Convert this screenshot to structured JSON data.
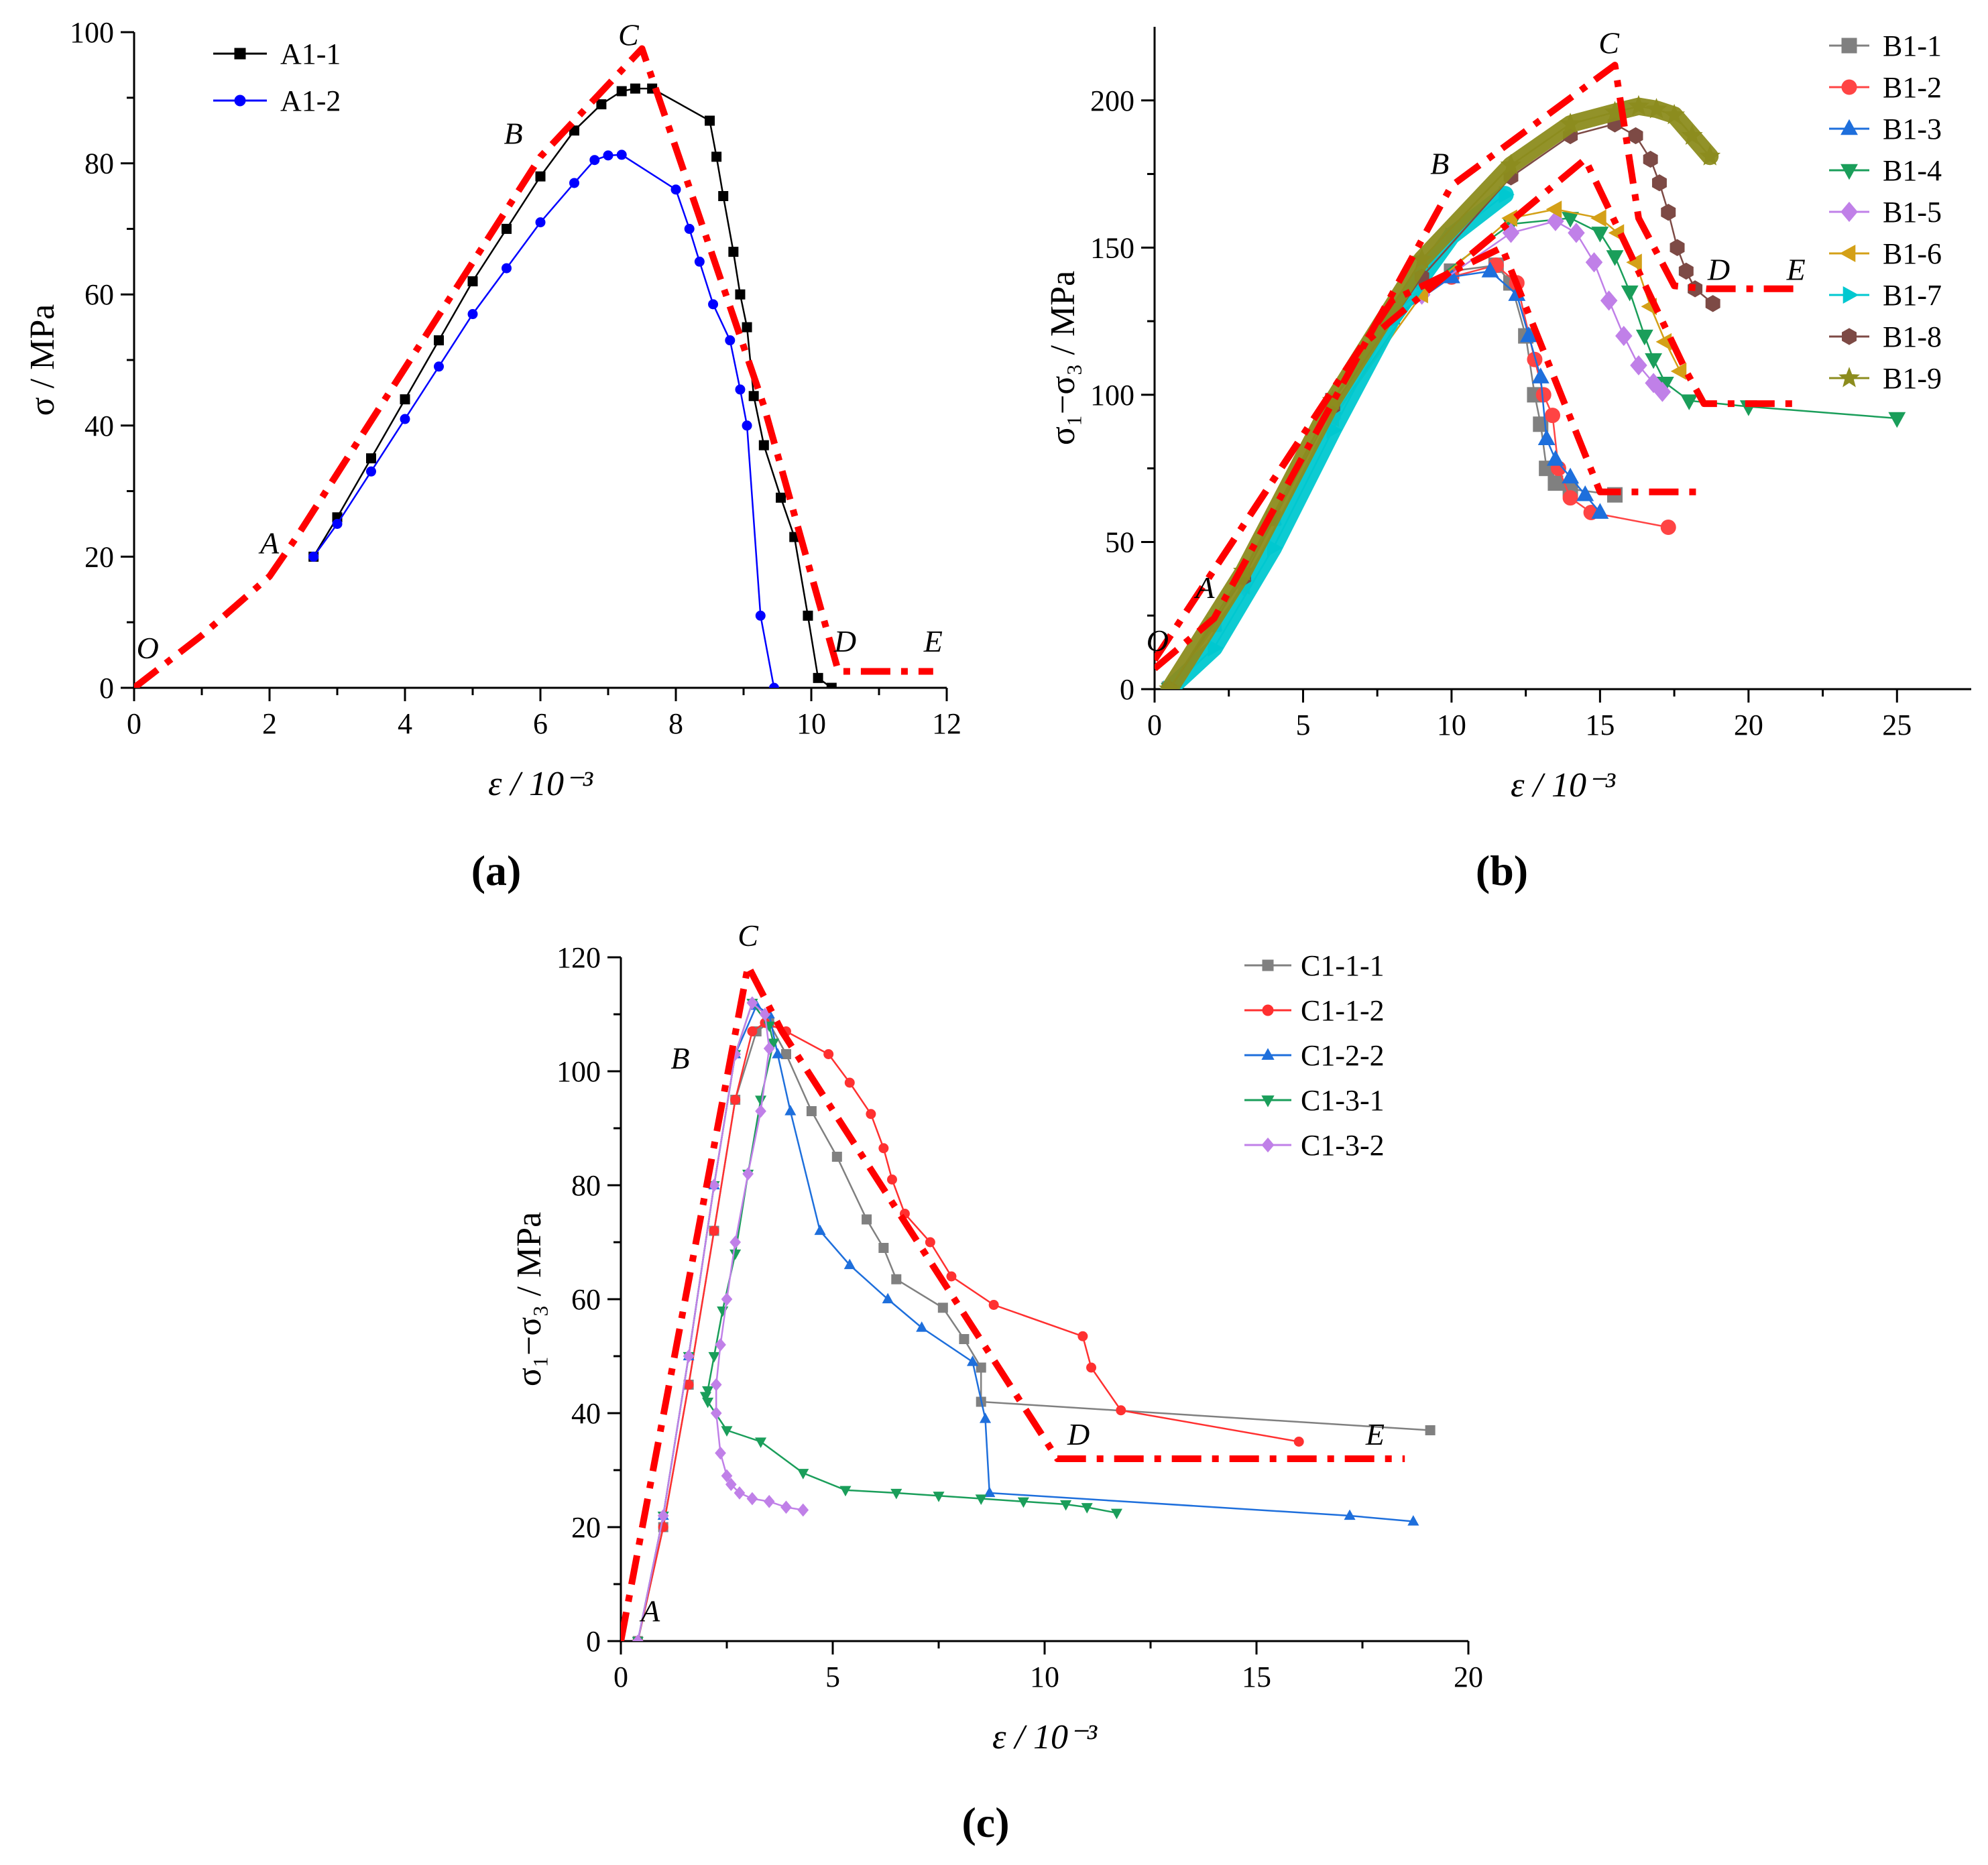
{
  "chart_data": [
    {
      "type": "line",
      "panel_label": "(a)",
      "xlabel": "ε / 10⁻³",
      "ylabel": "σ / MPa",
      "xlim": [
        0,
        12
      ],
      "ylim": [
        0,
        100
      ],
      "xticks": [
        0,
        2,
        4,
        6,
        8,
        10,
        12
      ],
      "yticks": [
        0,
        20,
        40,
        60,
        80,
        100
      ],
      "legend": "top-left",
      "series": [
        {
          "name": "A1-1",
          "color": "#000000",
          "marker": "square",
          "x": [
            2.65,
            3.0,
            3.5,
            4.0,
            4.5,
            5.0,
            5.5,
            6.0,
            6.5,
            6.9,
            7.2,
            7.4,
            7.65,
            8.5,
            8.6,
            8.7,
            8.85,
            8.95,
            9.05,
            9.15,
            9.3,
            9.55,
            9.75,
            9.95,
            10.1,
            10.3
          ],
          "y": [
            20,
            26,
            35,
            44,
            53,
            62,
            70,
            78,
            85,
            89,
            91,
            91.4,
            91.4,
            86.5,
            81,
            75,
            66.5,
            60,
            55,
            44.5,
            37,
            29,
            23,
            11,
            1.5,
            0
          ]
        },
        {
          "name": "A1-2",
          "color": "#0000ff",
          "marker": "circle",
          "x": [
            2.65,
            3.0,
            3.5,
            4.0,
            4.5,
            5.0,
            5.5,
            6.0,
            6.5,
            6.8,
            7.0,
            7.2,
            8.0,
            8.2,
            8.35,
            8.55,
            8.8,
            8.95,
            9.05,
            9.25,
            9.45
          ],
          "y": [
            20,
            25,
            33,
            41,
            49,
            57,
            64,
            71,
            77,
            80.5,
            81.2,
            81.3,
            76,
            70,
            65,
            58.5,
            53,
            45.5,
            40,
            11,
            0
          ]
        },
        {
          "name": "model",
          "color": "#ff0000",
          "style": "dashdot",
          "x": [
            0,
            1,
            2,
            2.4,
            6,
            7.5,
            9.3,
            10.4,
            11.8
          ],
          "y": [
            0,
            8,
            17,
            23,
            81,
            97.5,
            43,
            2.5,
            2.5
          ]
        }
      ],
      "annotations": [
        {
          "text": "O",
          "x": 0.2,
          "y": 4.5
        },
        {
          "text": "A",
          "x": 2.0,
          "y": 20.5
        },
        {
          "text": "B",
          "x": 5.6,
          "y": 83
        },
        {
          "text": "C",
          "x": 7.3,
          "y": 98
        },
        {
          "text": "D",
          "x": 10.5,
          "y": 5.5
        },
        {
          "text": "E",
          "x": 11.8,
          "y": 5.5
        }
      ]
    },
    {
      "type": "line",
      "panel_label": "(b)",
      "xlabel": "ε / 10⁻³",
      "ylabel": "σ₁−σ₃ / MPa",
      "xlim": [
        0,
        27.5
      ],
      "ylim": [
        0,
        225
      ],
      "xticks": [
        0,
        5,
        10,
        15,
        20,
        25
      ],
      "yticks": [
        0,
        50,
        100,
        150,
        200
      ],
      "legend": "outside-right",
      "series": [
        {
          "name": "B1-1",
          "color": "#808080",
          "marker": "square",
          "x": [
            0.5,
            2,
            4,
            6,
            8,
            10,
            11.5,
            12,
            12.5,
            12.8,
            13,
            13.2,
            13.5,
            14,
            15.5
          ],
          "y": [
            0,
            22,
            58,
            98,
            128,
            142,
            144,
            138,
            120,
            100,
            90,
            75,
            70,
            68,
            66
          ]
        },
        {
          "name": "B1-2",
          "color": "#ff4444",
          "marker": "circle",
          "x": [
            0.5,
            2,
            4,
            6,
            8,
            10,
            11.5,
            12.2,
            12.8,
            13.1,
            13.4,
            13.6,
            14,
            14.7,
            17.3
          ],
          "y": [
            0,
            22,
            58,
            98,
            126,
            140,
            144,
            138,
            112,
            100,
            93,
            75,
            65,
            60,
            55
          ]
        },
        {
          "name": "B1-3",
          "color": "#1e6fdc",
          "marker": "triangle-up",
          "x": [
            0.5,
            2,
            4,
            6,
            8,
            10,
            11.3,
            12.2,
            12.6,
            13,
            13.2,
            13.5,
            14,
            14.5,
            15
          ],
          "y": [
            0,
            22,
            58,
            98,
            126,
            140,
            142,
            134,
            120,
            106,
            85,
            78,
            72,
            66,
            60
          ]
        },
        {
          "name": "B1-4",
          "color": "#1a9e5a",
          "marker": "triangle-down",
          "x": [
            0.5,
            3,
            6,
            9,
            12,
            14,
            15,
            15.5,
            16,
            16.5,
            16.8,
            17.2,
            18,
            20,
            25
          ],
          "y": [
            0,
            35,
            92,
            136,
            158,
            160,
            155,
            147,
            135,
            120,
            112,
            104,
            98,
            96,
            92
          ]
        },
        {
          "name": "B1-5",
          "color": "#c080e8",
          "marker": "diamond",
          "x": [
            0.5,
            3,
            6,
            9,
            12,
            13.5,
            14.2,
            14.8,
            15.3,
            15.8,
            16.3,
            16.8,
            17.1
          ],
          "y": [
            0,
            35,
            92,
            134,
            155,
            159,
            155,
            145,
            132,
            120,
            110,
            104,
            101
          ]
        },
        {
          "name": "B1-6",
          "color": "#d4a017",
          "marker": "triangle-left",
          "x": [
            0.5,
            3,
            6,
            9,
            12,
            13.5,
            15,
            15.6,
            16.2,
            16.7,
            17.2,
            17.7
          ],
          "y": [
            0,
            35,
            92,
            134,
            160,
            163,
            160,
            155,
            145,
            130,
            118,
            108
          ]
        },
        {
          "name": "B1-7",
          "color": "#00c8d0",
          "marker": "triangle-right",
          "band": true,
          "x": [
            0.5,
            2,
            4,
            6,
            8,
            10,
            11.8
          ],
          "y": [
            0,
            14,
            48,
            88,
            126,
            154,
            168
          ]
        },
        {
          "name": "B1-8",
          "color": "#7d4a45",
          "marker": "hexagon",
          "x": [
            0.5,
            3,
            6,
            9,
            12,
            14,
            15.5,
            16.2,
            16.7,
            17,
            17.3,
            17.6,
            17.9,
            18.2,
            18.8
          ],
          "y": [
            0,
            38,
            96,
            140,
            174,
            188,
            192,
            188,
            180,
            172,
            162,
            150,
            142,
            136,
            131
          ]
        },
        {
          "name": "B1-9",
          "color": "#8c8c1e",
          "marker": "star",
          "band": true,
          "x": [
            0.5,
            3,
            6,
            9,
            12,
            14,
            15.5,
            16.3,
            16.9,
            17.5,
            18.1,
            18.7
          ],
          "y": [
            0,
            40,
            98,
            146,
            178,
            192,
            196,
            198,
            197,
            195,
            188,
            181
          ]
        },
        {
          "name": "model-1",
          "color": "#ff0000",
          "style": "dashdot",
          "x": [
            0,
            2,
            10,
            15.5,
            16.3,
            17.5,
            18.6,
            21.8
          ],
          "y": [
            7,
            24,
            171,
            212,
            160,
            137,
            136,
            136
          ]
        },
        {
          "name": "model-2",
          "color": "#ff0000",
          "style": "dashdot",
          "x": [
            0,
            7,
            14.5,
            17.9,
            18.5,
            21.8
          ],
          "y": [
            10,
            117,
            180,
            108,
            97,
            97
          ]
        },
        {
          "name": "model-3",
          "color": "#ff0000",
          "style": "dashdot",
          "x": [
            0,
            8,
            11.7,
            15,
            18.5
          ],
          "y": [
            10,
            132,
            150,
            67,
            67
          ]
        }
      ],
      "annotations": [
        {
          "text": "O",
          "x": 0.1,
          "y": 13
        },
        {
          "text": "A",
          "x": 1.7,
          "y": 31
        },
        {
          "text": "B",
          "x": 9.6,
          "y": 175
        },
        {
          "text": "C",
          "x": 15.3,
          "y": 216
        },
        {
          "text": "D",
          "x": 19.0,
          "y": 139
        },
        {
          "text": "E",
          "x": 21.6,
          "y": 139
        }
      ]
    },
    {
      "type": "line",
      "panel_label": "(c)",
      "xlabel": "ε / 10⁻³",
      "ylabel": "σ₁−σ₃ / MPa",
      "xlim": [
        0,
        20
      ],
      "ylim": [
        0,
        120
      ],
      "xticks": [
        0,
        5,
        10,
        15,
        20
      ],
      "yticks": [
        0,
        20,
        40,
        60,
        80,
        100,
        120
      ],
      "legend": "top-right",
      "series": [
        {
          "name": "C1-1-1",
          "color": "#808080",
          "marker": "square",
          "x": [
            0.4,
            1.0,
            1.6,
            2.2,
            2.7,
            3.2,
            3.5,
            3.9,
            4.5,
            5.1,
            5.8,
            6.2,
            6.5,
            7.6,
            8.1,
            8.5,
            8.5,
            19.1
          ],
          "y": [
            0,
            20,
            45,
            72,
            95,
            107,
            108.5,
            103,
            93,
            85,
            74,
            69,
            63.5,
            58.5,
            53,
            48,
            42,
            37
          ]
        },
        {
          "name": "C1-1-2",
          "color": "#ff3030",
          "marker": "circle",
          "x": [
            0.4,
            1.0,
            1.6,
            2.2,
            2.7,
            3.1,
            3.4,
            3.9,
            4.9,
            5.4,
            5.9,
            6.2,
            6.4,
            6.7,
            7.3,
            7.8,
            8.8,
            10.9,
            11.1,
            11.8,
            16
          ],
          "y": [
            0,
            20,
            45,
            72,
            95,
            107,
            108.5,
            107,
            103,
            98,
            92.5,
            86.5,
            81,
            75,
            70,
            64,
            59,
            53.5,
            48,
            40.5,
            35
          ]
        },
        {
          "name": "C1-2-2",
          "color": "#1e6fdc",
          "marker": "triangle-up",
          "x": [
            0.4,
            1.0,
            1.6,
            2.2,
            2.7,
            3.2,
            3.5,
            3.7,
            4.0,
            4.7,
            5.4,
            6.3,
            7.1,
            8.3,
            8.6,
            8.7,
            17.2,
            18.7
          ],
          "y": [
            0,
            22,
            50,
            80,
            103,
            111.5,
            110,
            103,
            93,
            72,
            66,
            60,
            55,
            49,
            39,
            26,
            22,
            21
          ]
        },
        {
          "name": "C1-3-1",
          "color": "#1a9e5a",
          "marker": "triangle-down",
          "x": [
            0.4,
            1.0,
            1.6,
            2.2,
            2.7,
            3.1,
            3.5,
            3.6,
            3.3,
            3.0,
            2.7,
            2.4,
            2.2,
            2.05,
            2.0,
            2.05,
            2.5,
            3.3,
            4.3,
            5.3,
            6.5,
            7.5,
            8.5,
            9.5,
            10.5,
            11.0,
            11.7
          ],
          "y": [
            0,
            22,
            50,
            80,
            103,
            112,
            108,
            105,
            95,
            82,
            68,
            58,
            50,
            44,
            43,
            42,
            37,
            35,
            29.5,
            26.5,
            26,
            25.5,
            25,
            24.5,
            24,
            23.5,
            22.5
          ]
        },
        {
          "name": "C1-3-2",
          "color": "#c080e8",
          "marker": "diamond",
          "x": [
            0.4,
            1.0,
            1.6,
            2.2,
            2.7,
            3.1,
            3.4,
            3.5,
            3.3,
            3.0,
            2.7,
            2.5,
            2.35,
            2.25,
            2.25,
            2.35,
            2.5,
            2.6,
            2.8,
            3.1,
            3.5,
            3.9,
            4.3
          ],
          "y": [
            0,
            22,
            50,
            80,
            103,
            112,
            110,
            104,
            93,
            82,
            70,
            60,
            52,
            45,
            40,
            33,
            29,
            27.5,
            26,
            25,
            24.5,
            23.5,
            23
          ]
        },
        {
          "name": "model",
          "color": "#ff0000",
          "style": "dashdot",
          "x": [
            0,
            3.0,
            3.8,
            10.3,
            18.5
          ],
          "y": [
            0,
            118.5,
            107,
            32,
            32
          ]
        }
      ],
      "annotations": [
        {
          "text": "A",
          "x": 0.7,
          "y": 3.5
        },
        {
          "text": "B",
          "x": 1.4,
          "y": 100.5
        },
        {
          "text": "C",
          "x": 3.0,
          "y": 122
        },
        {
          "text": "D",
          "x": 10.8,
          "y": 34.5
        },
        {
          "text": "E",
          "x": 17.8,
          "y": 34.5
        }
      ]
    }
  ]
}
